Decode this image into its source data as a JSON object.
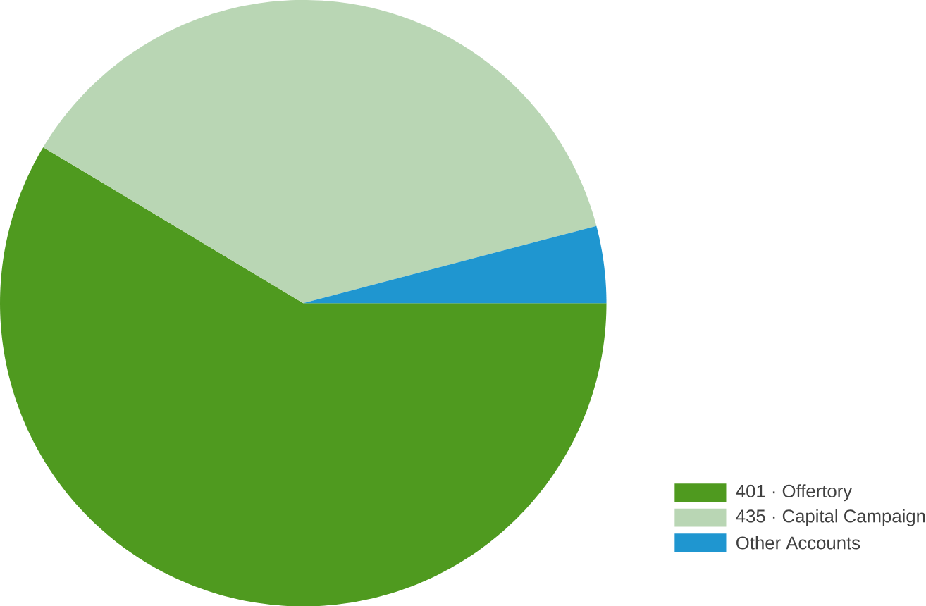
{
  "chart_data": {
    "type": "pie",
    "categories": [
      "401 · Offertory",
      "435 · Capital Campaign",
      "Other Accounts"
    ],
    "values": [
      58.6,
      37.3,
      4.1
    ],
    "colors": [
      "#4f9a1f",
      "#b9d6b4",
      "#1f96d0"
    ],
    "legend": "bottom right"
  }
}
